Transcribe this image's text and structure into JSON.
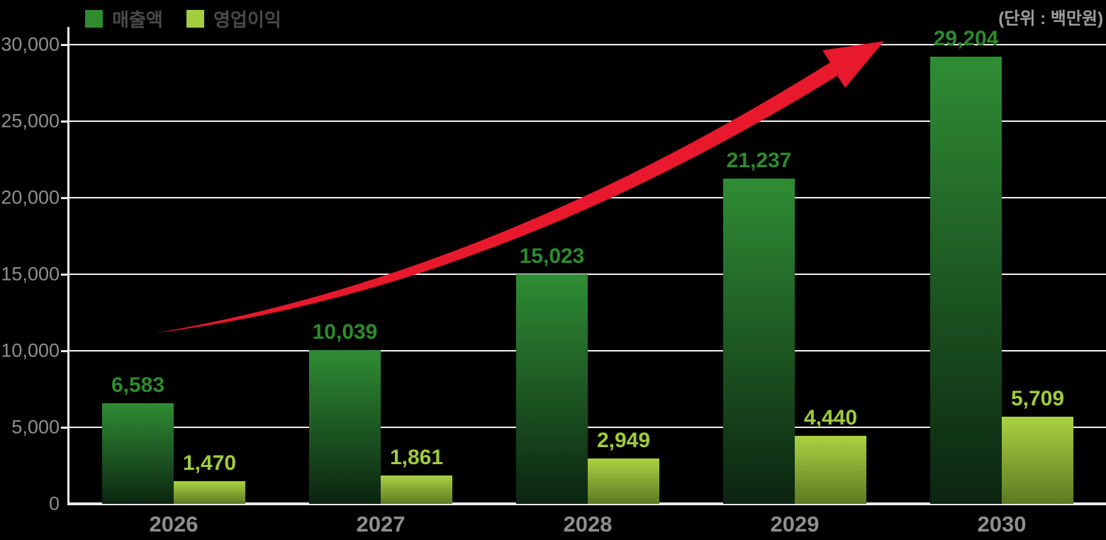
{
  "legend": {
    "revenue_label": "매출액",
    "profit_label": "영업이익"
  },
  "unit_note": "(단위 : 백만원)",
  "colors": {
    "background": "#000000",
    "grid": "#f2f2f2",
    "axis": "#e9e9e9",
    "axis_text": "#8f8f8f",
    "legend_text": "#4a4a4a",
    "unit_text": "#9e9e9e"
  },
  "chart_data": {
    "type": "bar",
    "title": "",
    "unit": "백만원",
    "categories": [
      "2026",
      "2027",
      "2028",
      "2029",
      "2030"
    ],
    "series": [
      {
        "name": "매출액",
        "values": [
          6583,
          10039,
          15023,
          21237,
          29204
        ],
        "labels": [
          "6,583",
          "10,039",
          "15,023",
          "21,237",
          "29,204"
        ],
        "color": "#2e8b2e",
        "gradient_top": "#2f8d34",
        "gradient_bottom": "#0b2410",
        "label_color": "#2e8b2e"
      },
      {
        "name": "영업이익",
        "values": [
          1470,
          1861,
          2949,
          4440,
          5709
        ],
        "labels": [
          "1,470",
          "1,861",
          "2,949",
          "4,440",
          "5,709"
        ],
        "color": "#a3cc3e",
        "gradient_top": "#abd242",
        "gradient_bottom": "#5c7a22",
        "label_color": "#a0cb3c"
      }
    ],
    "y_axis": {
      "min": 0,
      "max": 30000,
      "tick_interval": 5000,
      "tick_values": [
        0,
        5000,
        10000,
        15000,
        20000,
        25000,
        30000
      ],
      "tick_labels": [
        "0",
        "5,000",
        "10,000",
        "15,000",
        "20,000",
        "25,000",
        "30,000"
      ]
    },
    "grid": true,
    "legend_position": "top-left",
    "annotations": [
      {
        "type": "arrow",
        "color": "#e8192c",
        "meaning": "upward growth trend from 2026 to 2030"
      }
    ]
  }
}
